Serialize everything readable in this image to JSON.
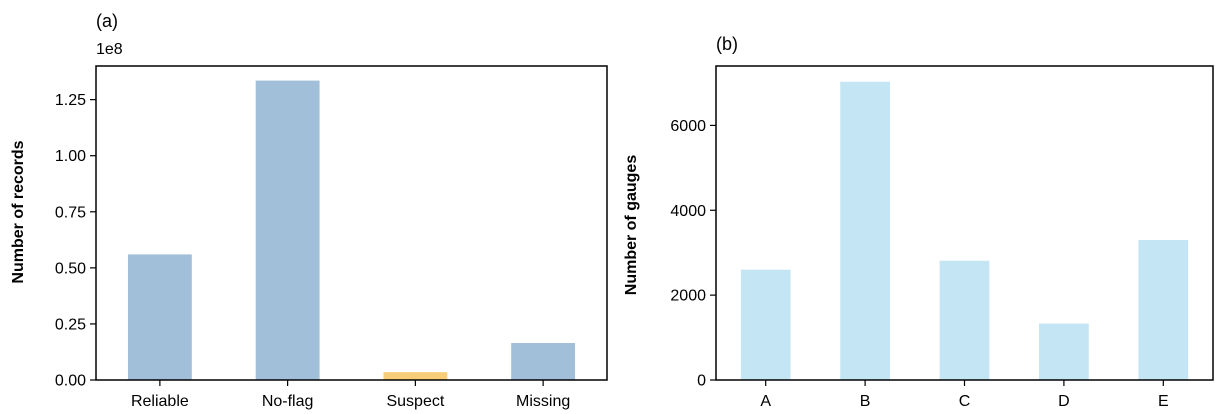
{
  "chart_data": [
    {
      "type": "bar",
      "panel_label": "(a)",
      "offset_label": "1e8",
      "ylabel": "Number of records",
      "xlabel": "",
      "categories": [
        "Reliable",
        "No-flag",
        "Suspect",
        "Missing"
      ],
      "values": [
        56000000,
        133500000,
        3500000,
        16500000
      ],
      "colors": [
        "#a2bfd9",
        "#a2bfd9",
        "#f7cd7a",
        "#a2bfd9"
      ],
      "ylim": [
        0,
        140000000
      ],
      "yticks": [
        0,
        25000000,
        50000000,
        75000000,
        100000000,
        125000000
      ],
      "ytick_labels": [
        "0.00",
        "0.25",
        "0.50",
        "0.75",
        "1.00",
        "1.25"
      ],
      "grid": false
    },
    {
      "type": "bar",
      "panel_label": "(b)",
      "ylabel": "Number of gauges",
      "xlabel": "",
      "categories": [
        "A",
        "B",
        "C",
        "D",
        "E"
      ],
      "values": [
        2600,
        7030,
        2810,
        1330,
        3300
      ],
      "colors": [
        "#c4e5f3",
        "#c4e5f3",
        "#c4e5f3",
        "#c4e5f3",
        "#c4e5f3"
      ],
      "ylim": [
        0,
        7400
      ],
      "yticks": [
        0,
        2000,
        4000,
        6000
      ],
      "ytick_labels": [
        "0",
        "2000",
        "4000",
        "6000"
      ],
      "grid": false
    }
  ]
}
